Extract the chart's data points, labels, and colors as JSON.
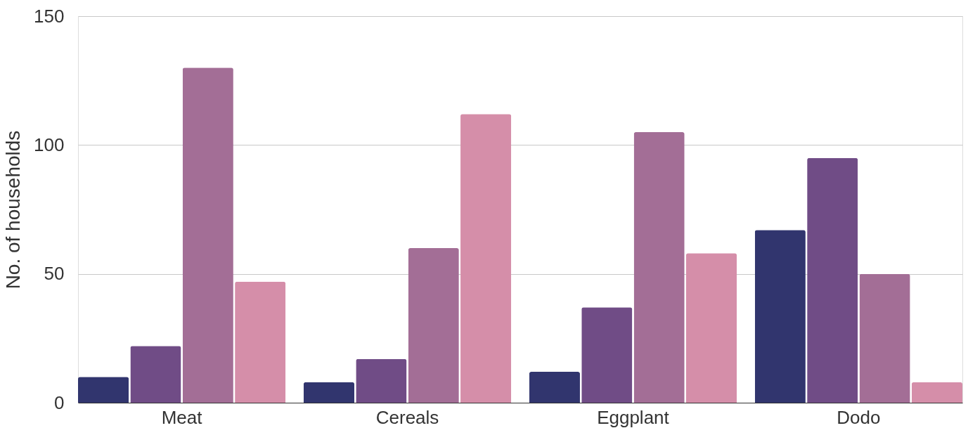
{
  "chart_data": {
    "type": "bar",
    "ylabel": "No. of households",
    "categories": [
      "Meat",
      "Cereals",
      "Eggplant",
      "Dodo"
    ],
    "series": [
      {
        "color": "#31356e",
        "values": [
          10,
          8,
          12,
          67
        ]
      },
      {
        "color": "#704c86",
        "values": [
          22,
          17,
          37,
          95
        ]
      },
      {
        "color": "#a36e96",
        "values": [
          130,
          60,
          105,
          50
        ]
      },
      {
        "color": "#d58ea9",
        "values": [
          47,
          112,
          58,
          8
        ]
      }
    ],
    "ylim": [
      0,
      150
    ],
    "yticks": [
      0,
      50,
      100,
      150
    ],
    "grid": "y",
    "legend": false
  }
}
